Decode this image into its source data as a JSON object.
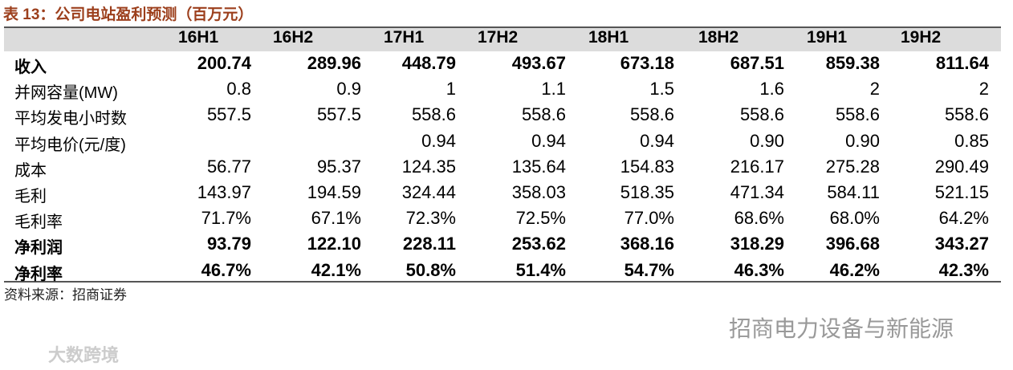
{
  "header": {
    "title": "表 13：公司电站盈利预测（百万元）"
  },
  "table": {
    "columns": [
      "16H1",
      "16H2",
      "17H1",
      "17H2",
      "18H1",
      "18H2",
      "19H1",
      "19H2"
    ],
    "rows": [
      {
        "label": "收入",
        "cells": [
          "200.74",
          "289.96",
          "448.79",
          "493.67",
          "673.18",
          "687.51",
          "859.38",
          "811.64"
        ]
      },
      {
        "label": "并网容量(MW)",
        "cells": [
          "0.8",
          "0.9",
          "1",
          "1.1",
          "1.5",
          "1.6",
          "2",
          "2"
        ]
      },
      {
        "label": "平均发电小时数",
        "cells": [
          "557.5",
          "557.5",
          "558.6",
          "558.6",
          "558.6",
          "558.6",
          "558.6",
          "558.6"
        ]
      },
      {
        "label": "平均电价(元/度)",
        "cells": [
          null,
          null,
          "0.94",
          "0.94",
          "0.94",
          "0.90",
          "0.90",
          "0.85"
        ]
      },
      {
        "label": "成本",
        "cells": [
          "56.77",
          "95.37",
          "124.35",
          "135.64",
          "154.83",
          "216.17",
          "275.28",
          "290.49"
        ]
      },
      {
        "label": "毛利",
        "cells": [
          "143.97",
          "194.59",
          "324.44",
          "358.03",
          "518.35",
          "471.34",
          "584.11",
          "521.15"
        ]
      },
      {
        "label": "毛利率",
        "cells": [
          "71.7%",
          "67.1%",
          "72.3%",
          "72.5%",
          "77.0%",
          "68.6%",
          "68.0%",
          "64.2%"
        ]
      },
      {
        "label": "净利润",
        "cells": [
          "93.79",
          "122.10",
          "228.11",
          "253.62",
          "368.16",
          "318.29",
          "396.68",
          "343.27"
        ]
      },
      {
        "label": "净利率",
        "cells": [
          "46.7%",
          "42.1%",
          "50.8%",
          "51.4%",
          "54.7%",
          "46.3%",
          "46.2%",
          "42.3%"
        ]
      }
    ]
  },
  "footer": {
    "source": "资料来源：招商证券"
  },
  "watermarks": {
    "channel": "招商电力设备与新能源",
    "site": "大数跨境"
  }
}
